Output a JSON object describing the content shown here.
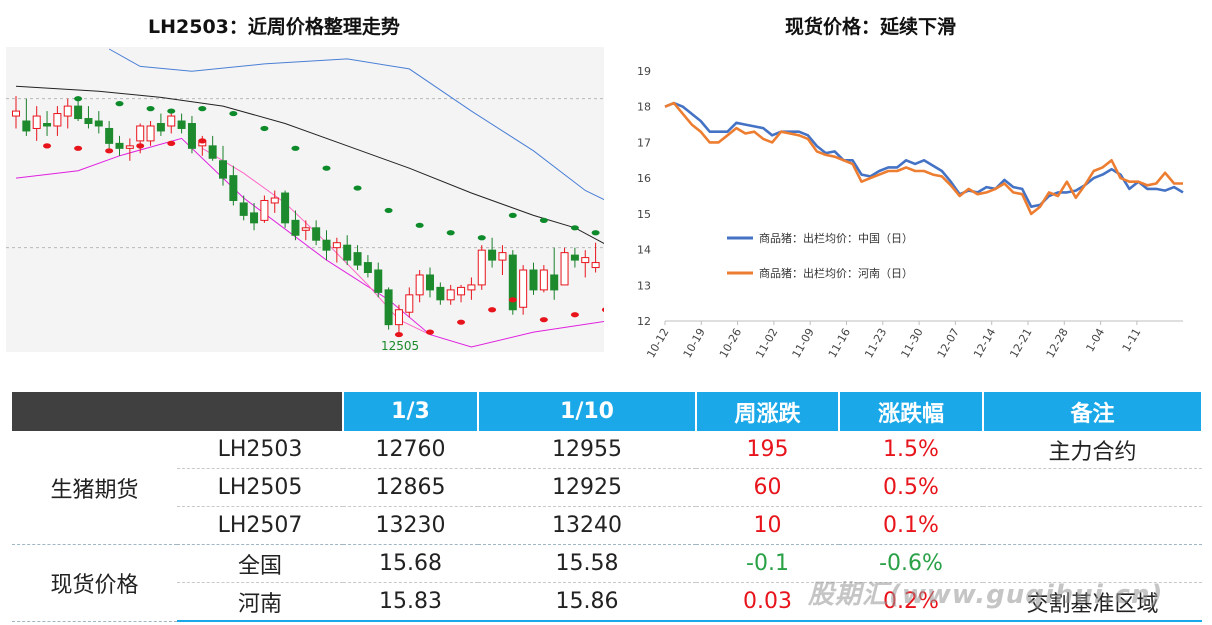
{
  "titles": {
    "left": "LH2503：近周价格整理走势",
    "right": "现货价格：延续下滑"
  },
  "colors": {
    "header_blue": "#1aa8e8",
    "header_dark": "#404040",
    "up_red": "#e8141c",
    "down_green": "#2aa147",
    "national_line": "#4472c4",
    "henan_line": "#ed7d31"
  },
  "chart_data": [
    {
      "type": "candlestick",
      "annotation": "12505",
      "ylim": [
        12450,
        13650
      ],
      "grid": false,
      "reference_lines": [
        13450,
        12850
      ],
      "candles": [
        {
          "o": 13380,
          "h": 13460,
          "l": 13330,
          "c": 13400
        },
        {
          "o": 13360,
          "h": 13450,
          "l": 13300,
          "c": 13320
        },
        {
          "o": 13330,
          "h": 13420,
          "l": 13280,
          "c": 13380
        },
        {
          "o": 13350,
          "h": 13400,
          "l": 13300,
          "c": 13340
        },
        {
          "o": 13340,
          "h": 13420,
          "l": 13300,
          "c": 13390
        },
        {
          "o": 13380,
          "h": 13450,
          "l": 13330,
          "c": 13420
        },
        {
          "o": 13420,
          "h": 13460,
          "l": 13360,
          "c": 13370
        },
        {
          "o": 13370,
          "h": 13420,
          "l": 13330,
          "c": 13350
        },
        {
          "o": 13360,
          "h": 13400,
          "l": 13310,
          "c": 13340
        },
        {
          "o": 13330,
          "h": 13360,
          "l": 13250,
          "c": 13270
        },
        {
          "o": 13270,
          "h": 13300,
          "l": 13220,
          "c": 13250
        },
        {
          "o": 13250,
          "h": 13290,
          "l": 13200,
          "c": 13260
        },
        {
          "o": 13280,
          "h": 13350,
          "l": 13230,
          "c": 13340
        },
        {
          "o": 13280,
          "h": 13360,
          "l": 13260,
          "c": 13340
        },
        {
          "o": 13350,
          "h": 13390,
          "l": 13300,
          "c": 13320
        },
        {
          "o": 13340,
          "h": 13400,
          "l": 13310,
          "c": 13380
        },
        {
          "o": 13360,
          "h": 13390,
          "l": 13310,
          "c": 13330
        },
        {
          "o": 13350,
          "h": 13380,
          "l": 13230,
          "c": 13250
        },
        {
          "o": 13260,
          "h": 13300,
          "l": 13220,
          "c": 13280
        },
        {
          "o": 13260,
          "h": 13300,
          "l": 13200,
          "c": 13210
        },
        {
          "o": 13200,
          "h": 13260,
          "l": 13100,
          "c": 13130
        },
        {
          "o": 13140,
          "h": 13180,
          "l": 13020,
          "c": 13040
        },
        {
          "o": 13030,
          "h": 13060,
          "l": 12960,
          "c": 12980
        },
        {
          "o": 12990,
          "h": 13030,
          "l": 12920,
          "c": 12950
        },
        {
          "o": 12960,
          "h": 13060,
          "l": 12950,
          "c": 13040
        },
        {
          "o": 13030,
          "h": 13080,
          "l": 12990,
          "c": 13050
        },
        {
          "o": 13070,
          "h": 13080,
          "l": 12930,
          "c": 12950
        },
        {
          "o": 12960,
          "h": 13000,
          "l": 12880,
          "c": 12900
        },
        {
          "o": 12920,
          "h": 12960,
          "l": 12880,
          "c": 12930
        },
        {
          "o": 12930,
          "h": 12960,
          "l": 12860,
          "c": 12880
        },
        {
          "o": 12880,
          "h": 12920,
          "l": 12800,
          "c": 12840
        },
        {
          "o": 12850,
          "h": 12890,
          "l": 12790,
          "c": 12870
        },
        {
          "o": 12860,
          "h": 12900,
          "l": 12780,
          "c": 12800
        },
        {
          "o": 12830,
          "h": 12860,
          "l": 12760,
          "c": 12780
        },
        {
          "o": 12790,
          "h": 12820,
          "l": 12730,
          "c": 12750
        },
        {
          "o": 12760,
          "h": 12790,
          "l": 12650,
          "c": 12670
        },
        {
          "o": 12680,
          "h": 12690,
          "l": 12520,
          "c": 12540
        },
        {
          "o": 12540,
          "h": 12620,
          "l": 12505,
          "c": 12600
        },
        {
          "o": 12590,
          "h": 12690,
          "l": 12570,
          "c": 12660
        },
        {
          "o": 12660,
          "h": 12760,
          "l": 12630,
          "c": 12740
        },
        {
          "o": 12740,
          "h": 12770,
          "l": 12650,
          "c": 12680
        },
        {
          "o": 12690,
          "h": 12710,
          "l": 12620,
          "c": 12640
        },
        {
          "o": 12640,
          "h": 12700,
          "l": 12620,
          "c": 12680
        },
        {
          "o": 12660,
          "h": 12700,
          "l": 12630,
          "c": 12690
        },
        {
          "o": 12680,
          "h": 12730,
          "l": 12640,
          "c": 12700
        },
        {
          "o": 12700,
          "h": 12860,
          "l": 12680,
          "c": 12840
        },
        {
          "o": 12840,
          "h": 12890,
          "l": 12770,
          "c": 12800
        },
        {
          "o": 12800,
          "h": 12860,
          "l": 12740,
          "c": 12830
        },
        {
          "o": 12820,
          "h": 12840,
          "l": 12580,
          "c": 12600
        },
        {
          "o": 12610,
          "h": 12780,
          "l": 12580,
          "c": 12760
        },
        {
          "o": 12760,
          "h": 12790,
          "l": 12660,
          "c": 12680
        },
        {
          "o": 12680,
          "h": 12780,
          "l": 12670,
          "c": 12760
        },
        {
          "o": 12740,
          "h": 12850,
          "l": 12640,
          "c": 12680
        },
        {
          "o": 12700,
          "h": 12850,
          "l": 12700,
          "c": 12830
        },
        {
          "o": 12820,
          "h": 12850,
          "l": 12770,
          "c": 12800
        },
        {
          "o": 12790,
          "h": 12840,
          "l": 12730,
          "c": 12810
        },
        {
          "o": 12770,
          "h": 12870,
          "l": 12750,
          "c": 12790
        }
      ],
      "middle_band": [
        {
          "i": 0,
          "v": 13500
        },
        {
          "i": 8,
          "v": 13480
        },
        {
          "i": 14,
          "v": 13455
        },
        {
          "i": 20,
          "v": 13420
        },
        {
          "i": 26,
          "v": 13350
        },
        {
          "i": 32,
          "v": 13260
        },
        {
          "i": 38,
          "v": 13170
        },
        {
          "i": 44,
          "v": 13070
        },
        {
          "i": 50,
          "v": 12980
        },
        {
          "i": 54,
          "v": 12930
        },
        {
          "i": 58,
          "v": 12840
        }
      ],
      "upper_band": [
        {
          "i": 9,
          "v": 13650
        },
        {
          "i": 12,
          "v": 13580
        },
        {
          "i": 17,
          "v": 13560
        },
        {
          "i": 24,
          "v": 13590
        },
        {
          "i": 32,
          "v": 13610
        },
        {
          "i": 38,
          "v": 13570
        },
        {
          "i": 44,
          "v": 13400
        },
        {
          "i": 50,
          "v": 13240
        },
        {
          "i": 55,
          "v": 13080
        },
        {
          "i": 58,
          "v": 13020
        }
      ],
      "lower_band": [
        {
          "i": 0,
          "v": 13130
        },
        {
          "i": 6,
          "v": 13160
        },
        {
          "i": 10,
          "v": 13220
        },
        {
          "i": 16,
          "v": 13290
        },
        {
          "i": 22,
          "v": 13050
        },
        {
          "i": 30,
          "v": 12800
        },
        {
          "i": 36,
          "v": 12640
        },
        {
          "i": 40,
          "v": 12500
        },
        {
          "i": 44,
          "v": 12450
        },
        {
          "i": 50,
          "v": 12510
        },
        {
          "i": 58,
          "v": 12560
        }
      ],
      "pink_line": [
        {
          "i": 18,
          "v": 13250
        },
        {
          "i": 22,
          "v": 13150
        },
        {
          "i": 26,
          "v": 13030
        },
        {
          "i": 30,
          "v": 12870
        },
        {
          "i": 34,
          "v": 12700
        },
        {
          "i": 37,
          "v": 12560
        },
        {
          "i": 40,
          "v": 12500
        }
      ],
      "sar_green": [
        {
          "i": 6,
          "v": 13450
        },
        {
          "i": 10,
          "v": 13430
        },
        {
          "i": 13,
          "v": 13410
        },
        {
          "i": 15,
          "v": 13400
        },
        {
          "i": 18,
          "v": 13410
        },
        {
          "i": 21,
          "v": 13390
        },
        {
          "i": 24,
          "v": 13330
        },
        {
          "i": 27,
          "v": 13250
        },
        {
          "i": 30,
          "v": 13170
        },
        {
          "i": 33,
          "v": 13090
        },
        {
          "i": 36,
          "v": 13000
        },
        {
          "i": 39,
          "v": 12940
        },
        {
          "i": 42,
          "v": 12910
        },
        {
          "i": 45,
          "v": 12890
        },
        {
          "i": 48,
          "v": 12980
        },
        {
          "i": 51,
          "v": 12960
        },
        {
          "i": 54,
          "v": 12930
        },
        {
          "i": 56,
          "v": 12910
        }
      ],
      "sar_red": [
        {
          "i": 3,
          "v": 13260
        },
        {
          "i": 6,
          "v": 13250
        },
        {
          "i": 9,
          "v": 13240
        },
        {
          "i": 12,
          "v": 13260
        },
        {
          "i": 15,
          "v": 13270
        },
        {
          "i": 18,
          "v": 13280
        },
        {
          "i": 37,
          "v": 12500
        },
        {
          "i": 40,
          "v": 12510
        },
        {
          "i": 43,
          "v": 12550
        },
        {
          "i": 46,
          "v": 12600
        },
        {
          "i": 48,
          "v": 12640
        },
        {
          "i": 51,
          "v": 12560
        },
        {
          "i": 54,
          "v": 12580
        },
        {
          "i": 57,
          "v": 12600
        }
      ]
    },
    {
      "type": "line",
      "ylim": [
        12,
        19
      ],
      "yticks": [
        12,
        13,
        14,
        15,
        16,
        17,
        18,
        19
      ],
      "x_ticks": [
        "10-12",
        "10-19",
        "10-26",
        "11-02",
        "11-09",
        "11-16",
        "11-23",
        "11-30",
        "12-07",
        "12-14",
        "12-21",
        "12-28",
        "1-04",
        "1-11"
      ],
      "legend_position": "left-middle",
      "series": [
        {
          "name": "商品猪：出栏均价：中国（日）",
          "color": "#4472c4",
          "values": [
            18.0,
            18.1,
            18.0,
            17.8,
            17.6,
            17.3,
            17.3,
            17.3,
            17.55,
            17.5,
            17.45,
            17.4,
            17.2,
            17.3,
            17.3,
            17.3,
            17.2,
            16.9,
            16.7,
            16.75,
            16.5,
            16.5,
            16.1,
            16.05,
            16.2,
            16.3,
            16.3,
            16.5,
            16.4,
            16.5,
            16.35,
            16.2,
            15.9,
            15.55,
            15.65,
            15.6,
            15.75,
            15.7,
            15.95,
            15.75,
            15.7,
            15.2,
            15.25,
            15.5,
            15.6,
            15.6,
            15.65,
            15.8,
            16.0,
            16.1,
            16.25,
            16.1,
            15.7,
            15.9,
            15.7,
            15.7,
            15.65,
            15.75,
            15.6
          ]
        },
        {
          "name": "商品猪：出栏均价：河南（日）",
          "color": "#ed7d31",
          "values": [
            18.0,
            18.1,
            17.8,
            17.5,
            17.3,
            17.0,
            17.0,
            17.2,
            17.4,
            17.25,
            17.3,
            17.1,
            17.0,
            17.3,
            17.25,
            17.2,
            17.1,
            16.75,
            16.65,
            16.6,
            16.5,
            16.4,
            15.9,
            16.0,
            16.1,
            16.2,
            16.2,
            16.3,
            16.2,
            16.2,
            16.1,
            16.05,
            15.8,
            15.5,
            15.7,
            15.55,
            15.6,
            15.7,
            15.85,
            15.6,
            15.55,
            15.0,
            15.2,
            15.6,
            15.5,
            15.9,
            15.45,
            15.8,
            16.2,
            16.3,
            16.5,
            16.0,
            15.9,
            15.9,
            15.8,
            15.85,
            16.15,
            15.85,
            15.85
          ]
        }
      ]
    },
    {
      "type": "table",
      "headers": [
        "",
        "",
        "1/3",
        "1/10",
        "周涨跌",
        "涨跌幅",
        "备注"
      ],
      "groups": [
        {
          "label": "生猪期货",
          "rows": [
            {
              "name": "LH2503",
              "d1": "12760",
              "d2": "12955",
              "chg": "195",
              "pct": "1.5%",
              "note": "主力合约",
              "dir": "up"
            },
            {
              "name": "LH2505",
              "d1": "12865",
              "d2": "12925",
              "chg": "60",
              "pct": "0.5%",
              "note": "",
              "dir": "up"
            },
            {
              "name": "LH2507",
              "d1": "13230",
              "d2": "13240",
              "chg": "10",
              "pct": "0.1%",
              "note": "",
              "dir": "up"
            }
          ]
        },
        {
          "label": "现货价格",
          "rows": [
            {
              "name": "全国",
              "d1": "15.68",
              "d2": "15.58",
              "chg": "-0.1",
              "pct": "-0.6%",
              "note": "",
              "dir": "down"
            },
            {
              "name": "河南",
              "d1": "15.83",
              "d2": "15.86",
              "chg": "0.03",
              "pct": "0.2%",
              "note": "交割基准区域",
              "dir": "up"
            }
          ]
        }
      ]
    }
  ],
  "watermark": "股期汇(www.guqihui.cn)"
}
